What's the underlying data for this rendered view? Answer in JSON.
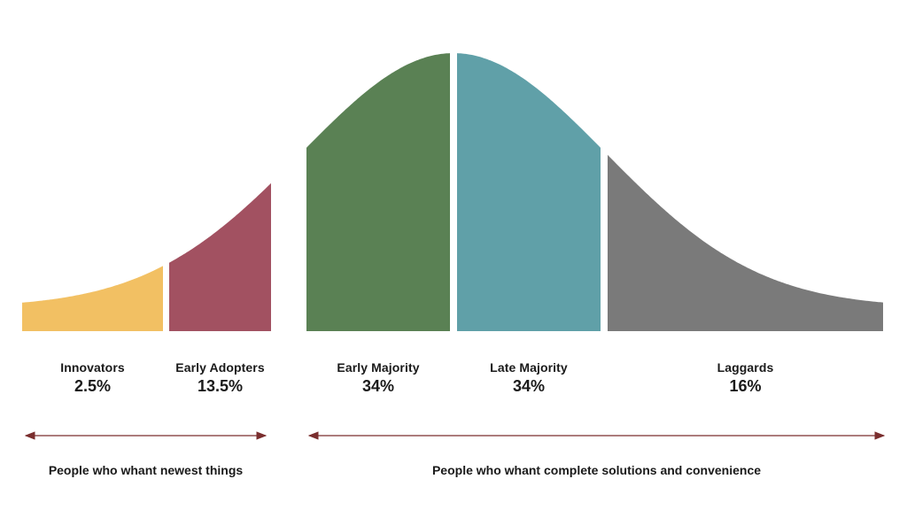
{
  "chart_data": {
    "type": "area",
    "segments": [
      {
        "name": "Innovators",
        "value_label": "2.5%",
        "value": 2.5,
        "color": "#f2c063"
      },
      {
        "name": "Early Adopters",
        "value_label": "13.5%",
        "value": 13.5,
        "color": "#a25161"
      },
      {
        "name": "Early Majority",
        "value_label": "34%",
        "value": 34,
        "color": "#5a8154"
      },
      {
        "name": "Late Majority",
        "value_label": "34%",
        "value": 34,
        "color": "#60a0a8"
      },
      {
        "name": "Laggards",
        "value_label": "16%",
        "value": 16,
        "color": "#7a7a7a"
      }
    ],
    "groups": [
      {
        "label": "People who whant newest things",
        "from_segment": 0,
        "to_segment": 1
      },
      {
        "label": "People who whant complete solutions and convenience",
        "from_segment": 2,
        "to_segment": 4
      }
    ],
    "arrow_color": "#7a2e2e"
  }
}
